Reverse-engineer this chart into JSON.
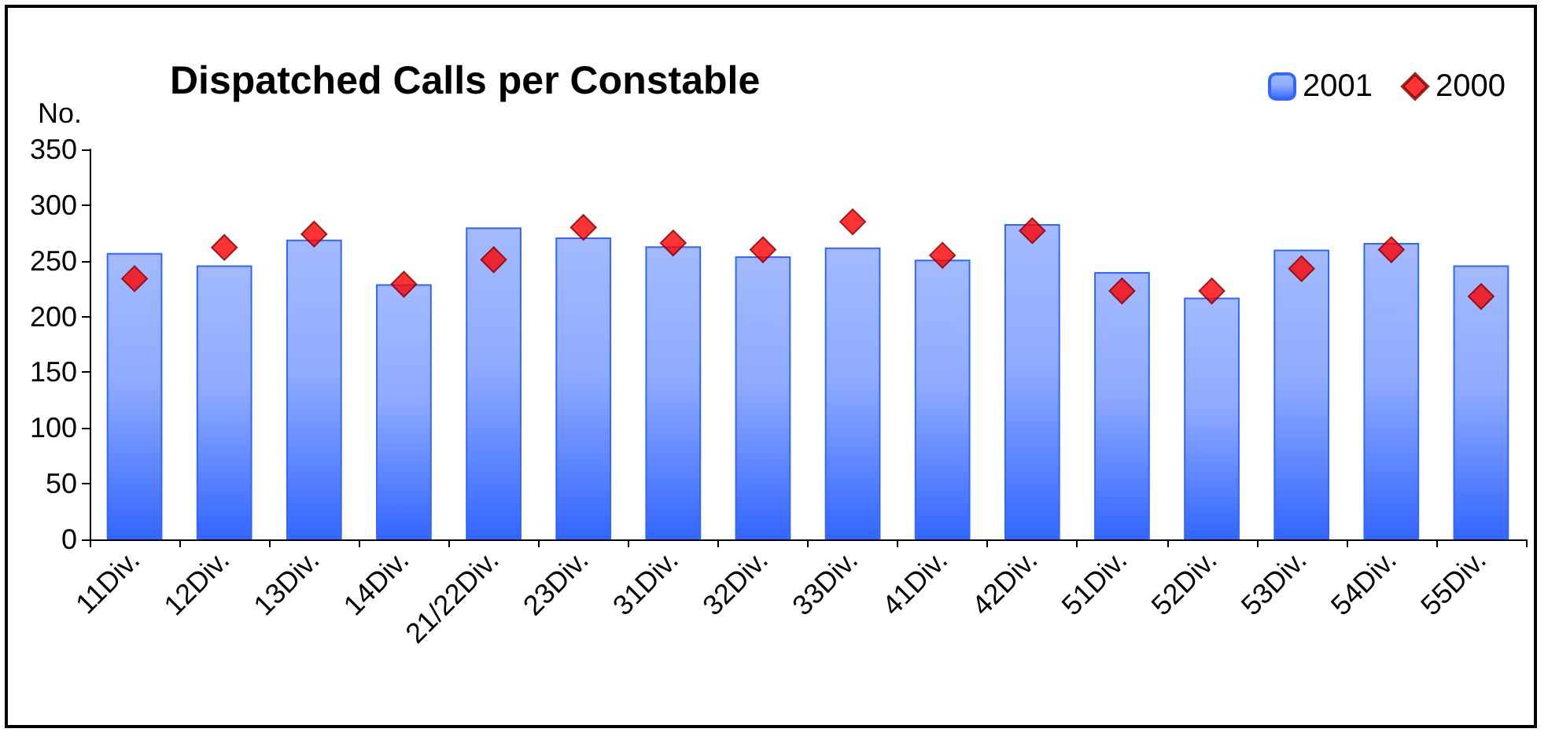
{
  "chart_data": {
    "type": "bar",
    "title": "Dispatched Calls per Constable",
    "ylabel": "No.",
    "categories": [
      "11Div.",
      "12Div.",
      "13Div.",
      "14Div.",
      "21/22Div.",
      "23Div.",
      "31Div.",
      "32Div.",
      "33Div.",
      "41Div.",
      "42Div.",
      "51Div.",
      "52Div.",
      "53Div.",
      "54Div.",
      "55Div."
    ],
    "series": [
      {
        "name": "2001",
        "type": "bar",
        "color": "#3366ff",
        "values": [
          257,
          246,
          269,
          229,
          280,
          271,
          263,
          254,
          262,
          251,
          283,
          240,
          217,
          260,
          266,
          246
        ]
      },
      {
        "name": "2000",
        "type": "scatter",
        "color": "#ff0000",
        "marker": "diamond",
        "values": [
          234,
          262,
          274,
          229,
          251,
          280,
          266,
          260,
          285,
          255,
          277,
          223,
          223,
          243,
          260,
          218
        ]
      }
    ],
    "ylim": [
      0,
      350
    ],
    "yticks": [
      0,
      50,
      100,
      150,
      200,
      250,
      300,
      350
    ],
    "grid": false,
    "legend": "top right"
  }
}
